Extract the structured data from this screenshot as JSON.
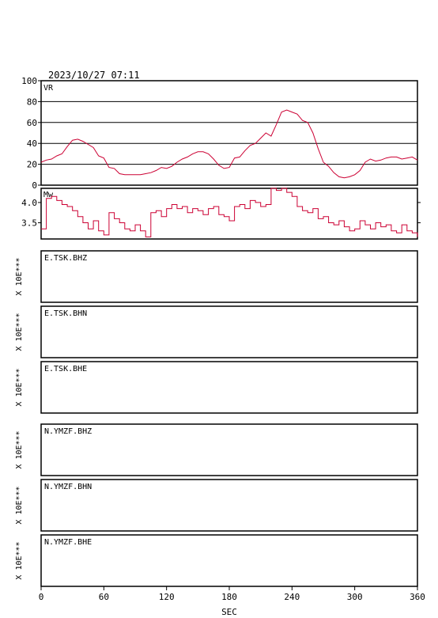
{
  "header": {
    "datetime": "2023/10/27 07:11"
  },
  "vr_panel": {
    "label": "VR",
    "ylim": [
      0,
      100
    ],
    "yticks": [
      "100",
      "80",
      "60",
      "40",
      "20",
      "0"
    ],
    "grid": true
  },
  "mw_panel": {
    "label": "Mw",
    "yticks": [
      "4.0",
      "3.5"
    ]
  },
  "stations": [
    {
      "label": "E.TSK.BHZ",
      "scale": "X 10E***"
    },
    {
      "label": "E.TSK.BHN",
      "scale": "X 10E***"
    },
    {
      "label": "E.TSK.BHE",
      "scale": "X 10E***"
    },
    {
      "label": "N.YMZF.BHZ",
      "scale": "X 10E***"
    },
    {
      "label": "N.YMZF.BHN",
      "scale": "X 10E***"
    },
    {
      "label": "N.YMZF.BHE",
      "scale": "X 10E***"
    }
  ],
  "xaxis": {
    "label": "SEC",
    "ticks": [
      "0",
      "60",
      "120",
      "180",
      "240",
      "300",
      "360"
    ],
    "range": [
      0,
      360
    ]
  },
  "colors": {
    "series": "#cc0033",
    "frame": "#000000"
  },
  "chart_data": [
    {
      "type": "line",
      "ylabel": "VR",
      "xlim": [
        0,
        360
      ],
      "ylim": [
        0,
        100
      ],
      "x": [
        0,
        5,
        10,
        15,
        20,
        25,
        30,
        35,
        40,
        45,
        50,
        55,
        60,
        65,
        70,
        75,
        80,
        85,
        90,
        95,
        100,
        105,
        110,
        115,
        120,
        125,
        130,
        135,
        140,
        145,
        150,
        155,
        160,
        165,
        170,
        175,
        180,
        185,
        190,
        195,
        200,
        205,
        210,
        215,
        220,
        225,
        230,
        235,
        240,
        245,
        250,
        255,
        260,
        265,
        270,
        275,
        280,
        285,
        290,
        295,
        300,
        305,
        310,
        315,
        320,
        325,
        330,
        335,
        340,
        345,
        350,
        355,
        360
      ],
      "series": [
        {
          "values": [
            22,
            24,
            25,
            28,
            30,
            37,
            43,
            44,
            42,
            39,
            36,
            28,
            26,
            17,
            16,
            11,
            10,
            10,
            10,
            10,
            11,
            12,
            14,
            17,
            16,
            18,
            22,
            25,
            27,
            30,
            32,
            32,
            30,
            25,
            19,
            16,
            17,
            26,
            27,
            33,
            38,
            40,
            45,
            50,
            47,
            58,
            70,
            72,
            70,
            68,
            62,
            60,
            50,
            35,
            22,
            18,
            12,
            8,
            7,
            8,
            10,
            14,
            22,
            25,
            23,
            24,
            26,
            27,
            27,
            25,
            26,
            27,
            24
          ]
        }
      ]
    },
    {
      "type": "line",
      "ylabel": "Mw",
      "xlim": [
        0,
        360
      ],
      "ylim": [
        3.1,
        4.35
      ],
      "x": [
        0,
        5,
        10,
        15,
        20,
        25,
        30,
        35,
        40,
        45,
        50,
        55,
        60,
        65,
        70,
        75,
        80,
        85,
        90,
        95,
        100,
        105,
        110,
        115,
        120,
        125,
        130,
        135,
        140,
        145,
        150,
        155,
        160,
        165,
        170,
        175,
        180,
        185,
        190,
        195,
        200,
        205,
        210,
        215,
        220,
        225,
        230,
        235,
        240,
        245,
        250,
        255,
        260,
        265,
        270,
        275,
        280,
        285,
        290,
        295,
        300,
        305,
        310,
        315,
        320,
        325,
        330,
        335,
        340,
        345,
        350,
        355,
        360
      ],
      "series": [
        {
          "values": [
            3.35,
            4.1,
            4.15,
            4.05,
            3.95,
            3.9,
            3.8,
            3.65,
            3.5,
            3.35,
            3.55,
            3.3,
            3.2,
            3.75,
            3.6,
            3.5,
            3.35,
            3.3,
            3.45,
            3.3,
            3.15,
            3.75,
            3.8,
            3.65,
            3.85,
            3.95,
            3.85,
            3.9,
            3.75,
            3.85,
            3.8,
            3.7,
            3.85,
            3.9,
            3.7,
            3.65,
            3.55,
            3.9,
            3.95,
            3.85,
            4.05,
            4.0,
            3.9,
            3.95,
            4.35,
            4.3,
            4.35,
            4.25,
            4.15,
            3.9,
            3.8,
            3.75,
            3.85,
            3.6,
            3.65,
            3.5,
            3.45,
            3.55,
            3.4,
            3.3,
            3.35,
            3.55,
            3.45,
            3.35,
            3.5,
            3.4,
            3.45,
            3.3,
            3.25,
            3.45,
            3.3,
            3.25,
            3.15
          ]
        }
      ]
    }
  ]
}
